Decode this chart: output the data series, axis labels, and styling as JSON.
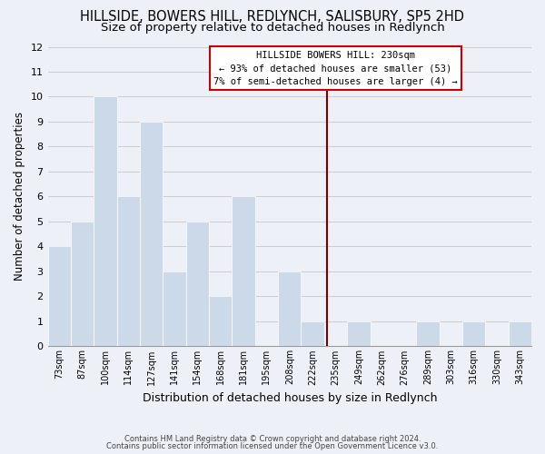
{
  "title": "HILLSIDE, BOWERS HILL, REDLYNCH, SALISBURY, SP5 2HD",
  "subtitle": "Size of property relative to detached houses in Redlynch",
  "xlabel": "Distribution of detached houses by size in Redlynch",
  "ylabel": "Number of detached properties",
  "bin_labels": [
    "73sqm",
    "87sqm",
    "100sqm",
    "114sqm",
    "127sqm",
    "141sqm",
    "154sqm",
    "168sqm",
    "181sqm",
    "195sqm",
    "208sqm",
    "222sqm",
    "235sqm",
    "249sqm",
    "262sqm",
    "276sqm",
    "289sqm",
    "303sqm",
    "316sqm",
    "330sqm",
    "343sqm"
  ],
  "bar_heights": [
    4,
    5,
    10,
    6,
    9,
    3,
    5,
    2,
    6,
    0,
    3,
    1,
    0,
    1,
    0,
    0,
    1,
    0,
    1,
    0,
    1
  ],
  "bar_color": "#ccd9e8",
  "bar_edge_color": "#ffffff",
  "grid_color": "#cccccc",
  "ylim": [
    0,
    12
  ],
  "yticks": [
    0,
    1,
    2,
    3,
    4,
    5,
    6,
    7,
    8,
    9,
    10,
    11,
    12
  ],
  "property_line_color": "#7a0000",
  "annotation_title": "HILLSIDE BOWERS HILL: 230sqm",
  "annotation_line1": "← 93% of detached houses are smaller (53)",
  "annotation_line2": "7% of semi-detached houses are larger (4) →",
  "annotation_box_color": "#ffffff",
  "annotation_box_edge": "#cc0000",
  "footer_line1": "Contains HM Land Registry data © Crown copyright and database right 2024.",
  "footer_line2": "Contains public sector information licensed under the Open Government Licence v3.0.",
  "background_color": "#edf1f7",
  "title_fontsize": 10.5,
  "subtitle_fontsize": 9.5
}
